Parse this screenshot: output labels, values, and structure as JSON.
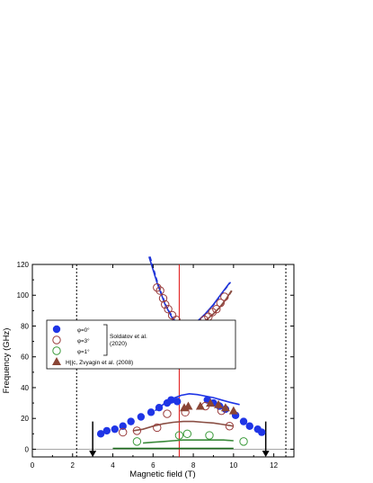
{
  "chart_data": {
    "type": "scatter",
    "title": "",
    "xlabel": "Magnetic field (T)",
    "ylabel": "Frequency (GHz)",
    "xlim": [
      0,
      13
    ],
    "ylim": [
      -5,
      120
    ],
    "xticks": [
      0,
      2,
      4,
      6,
      8,
      10,
      12
    ],
    "yticks": [
      0,
      20,
      40,
      60,
      80,
      100,
      120
    ],
    "grid": false,
    "legend_position": "middle-left",
    "legend": {
      "entries": [
        "φ=0°",
        "φ=3°",
        "φ=1°",
        "H||c, Zvyagin et al. (2008)"
      ],
      "bracket_label_line1": "Soldatov et al.",
      "bracket_label_line2": "(2020)"
    },
    "series": [
      {
        "name": "φ=0°",
        "marker": "filled-circle",
        "color": "#1f35e6",
        "points": [
          [
            3.4,
            10
          ],
          [
            3.7,
            12
          ],
          [
            4.1,
            13
          ],
          [
            4.5,
            15
          ],
          [
            4.9,
            18
          ],
          [
            5.4,
            21
          ],
          [
            5.9,
            24
          ],
          [
            6.3,
            27
          ],
          [
            6.7,
            30
          ],
          [
            6.9,
            32
          ],
          [
            7.2,
            31
          ],
          [
            8.7,
            32
          ],
          [
            9.0,
            30
          ],
          [
            9.3,
            28
          ],
          [
            9.6,
            26
          ],
          [
            10.1,
            22
          ],
          [
            10.5,
            18
          ],
          [
            10.8,
            15
          ],
          [
            11.2,
            13
          ],
          [
            11.4,
            11
          ]
        ]
      },
      {
        "name": "φ=3°",
        "marker": "open-circle",
        "color": "#9a3c3c",
        "points": [
          [
            4.5,
            11
          ],
          [
            5.2,
            12
          ],
          [
            6.2,
            14
          ],
          [
            6.7,
            23
          ],
          [
            7.6,
            24
          ],
          [
            8.6,
            28
          ],
          [
            9.4,
            25
          ],
          [
            9.8,
            15
          ],
          [
            6.2,
            105
          ],
          [
            6.35,
            103
          ],
          [
            6.5,
            98
          ],
          [
            6.6,
            94
          ],
          [
            6.75,
            91
          ],
          [
            6.95,
            87
          ],
          [
            7.15,
            84
          ],
          [
            7.3,
            81
          ],
          [
            7.45,
            80
          ],
          [
            7.75,
            79
          ],
          [
            7.95,
            79
          ],
          [
            8.15,
            80
          ],
          [
            8.35,
            81
          ],
          [
            8.55,
            84
          ],
          [
            8.75,
            86
          ],
          [
            8.95,
            89
          ],
          [
            9.15,
            91
          ],
          [
            9.35,
            95
          ],
          [
            9.55,
            99
          ]
        ]
      },
      {
        "name": "φ=1°",
        "marker": "open-circle",
        "color": "#3a9a3a",
        "points": [
          [
            5.2,
            5
          ],
          [
            7.3,
            9
          ],
          [
            7.7,
            10
          ],
          [
            8.8,
            9
          ],
          [
            10.5,
            5
          ]
        ]
      },
      {
        "name": "H||c, Zvyagin et al. (2008)",
        "marker": "filled-triangle",
        "color": "#8a4535",
        "points": [
          [
            7.55,
            27
          ],
          [
            7.75,
            28
          ],
          [
            8.35,
            28
          ],
          [
            8.85,
            30
          ],
          [
            9.25,
            29
          ],
          [
            9.6,
            27
          ],
          [
            10.0,
            25
          ]
        ]
      }
    ],
    "curves": [
      {
        "color": "#1f35e6",
        "style": "solid",
        "x": [
          6.1,
          6.6,
          7.0,
          7.4,
          7.8,
          8.2,
          8.6,
          9.0,
          9.4,
          9.8,
          10.3
        ],
        "y": [
          25,
          30,
          33,
          35,
          36,
          35.5,
          34.5,
          33.5,
          32,
          30.5,
          29
        ]
      },
      {
        "color": "#8a4f44",
        "style": "solid",
        "x": [
          5.0,
          5.5,
          6.0,
          6.5,
          7.0,
          7.5,
          8.0,
          8.5,
          9.0,
          9.5,
          10.0
        ],
        "y": [
          12,
          13,
          15,
          16.5,
          17.5,
          18,
          18,
          17.5,
          17,
          16,
          15
        ]
      },
      {
        "color": "#3a8a3a",
        "style": "solid",
        "x": [
          5.5,
          6.0,
          6.5,
          7.0,
          7.5,
          8.0,
          8.5,
          9.0,
          9.5,
          10.0
        ],
        "y": [
          4,
          4.5,
          5,
          5.5,
          6,
          6,
          6,
          6,
          6,
          5.5
        ]
      },
      {
        "color": "#1f6e1f",
        "style": "solid",
        "x": [
          4.0,
          5.0,
          6.0,
          7.0,
          8.0,
          9.0,
          10.0
        ],
        "y": [
          0.5,
          0.5,
          0.5,
          0.5,
          0.5,
          0.5,
          0.5
        ]
      },
      {
        "color": "#2035d8",
        "style": "solid",
        "x": [
          5.8,
          6.2,
          6.6,
          7.0,
          7.3,
          7.6,
          7.9,
          8.2,
          8.6,
          9.0,
          9.4,
          9.8
        ],
        "y": [
          125,
          108,
          94,
          84,
          80,
          79,
          80,
          83,
          88,
          94,
          101,
          108
        ]
      },
      {
        "color": "#2035d8",
        "style": "dashed",
        "x": [
          5.85,
          6.25,
          6.65,
          7.05,
          7.35,
          7.65,
          7.95,
          8.25,
          8.65,
          9.05,
          9.45,
          9.85
        ],
        "y": [
          125,
          107,
          93,
          84,
          80.5,
          79.5,
          80.5,
          83.5,
          88.5,
          94.5,
          101.5,
          108.5
        ]
      },
      {
        "color": "#8a4f44",
        "style": "solid",
        "x": [
          7.2,
          7.5,
          7.8,
          8.1,
          8.4,
          8.7,
          9.0,
          9.3,
          9.6,
          9.9
        ],
        "y": [
          79.5,
          78.5,
          78.5,
          79.5,
          81.5,
          84.5,
          88,
          92,
          97,
          103
        ]
      },
      {
        "color": "#8a4f44",
        "style": "dashed",
        "x": [
          7.25,
          7.55,
          7.85,
          8.15,
          8.45,
          8.75,
          9.05,
          9.35,
          9.65,
          9.95
        ],
        "y": [
          80,
          79,
          79,
          80,
          82,
          85,
          88.5,
          92.5,
          97.5,
          103.5
        ]
      }
    ],
    "reference_lines": {
      "vertical_dotted": [
        2.2,
        12.6
      ],
      "vertical_red": 7.3,
      "horizontal_zero": 0,
      "arrows_down_at": [
        3.0,
        11.6
      ]
    }
  }
}
